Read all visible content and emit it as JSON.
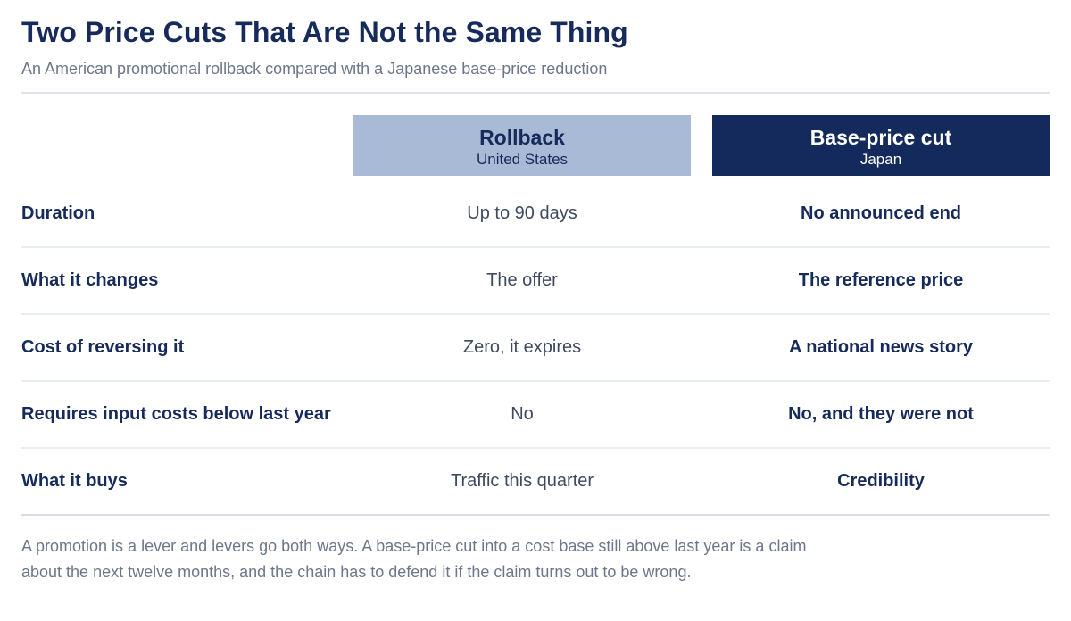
{
  "title": "Two Price Cuts That Are Not the Same Thing",
  "subtitle": "An American promotional rollback compared with a Japanese base-price reduction",
  "columns": [
    {
      "name": "Rollback",
      "region": "United States",
      "color": "#a9bad6"
    },
    {
      "name": "Base-price cut",
      "region": "Japan",
      "color": "#152a5c"
    }
  ],
  "rows": [
    {
      "label": "Duration",
      "rollback": "Up to 90 days",
      "base_cut": "No announced end"
    },
    {
      "label": "What it changes",
      "rollback": "The offer",
      "base_cut": "The reference price"
    },
    {
      "label": "Cost of reversing it",
      "rollback": "Zero, it expires",
      "base_cut": "A national news story"
    },
    {
      "label": "Requires input costs below last year",
      "rollback": "No",
      "base_cut": "No, and they were not"
    },
    {
      "label": "What it buys",
      "rollback": "Traffic this quarter",
      "base_cut": "Credibility"
    }
  ],
  "note_lines": [
    "A promotion is a lever and levers go both ways. A base-price cut into a cost base still above last year is a claim",
    "about the next twelve months, and the chain has to defend it if the claim turns out to be wrong."
  ]
}
